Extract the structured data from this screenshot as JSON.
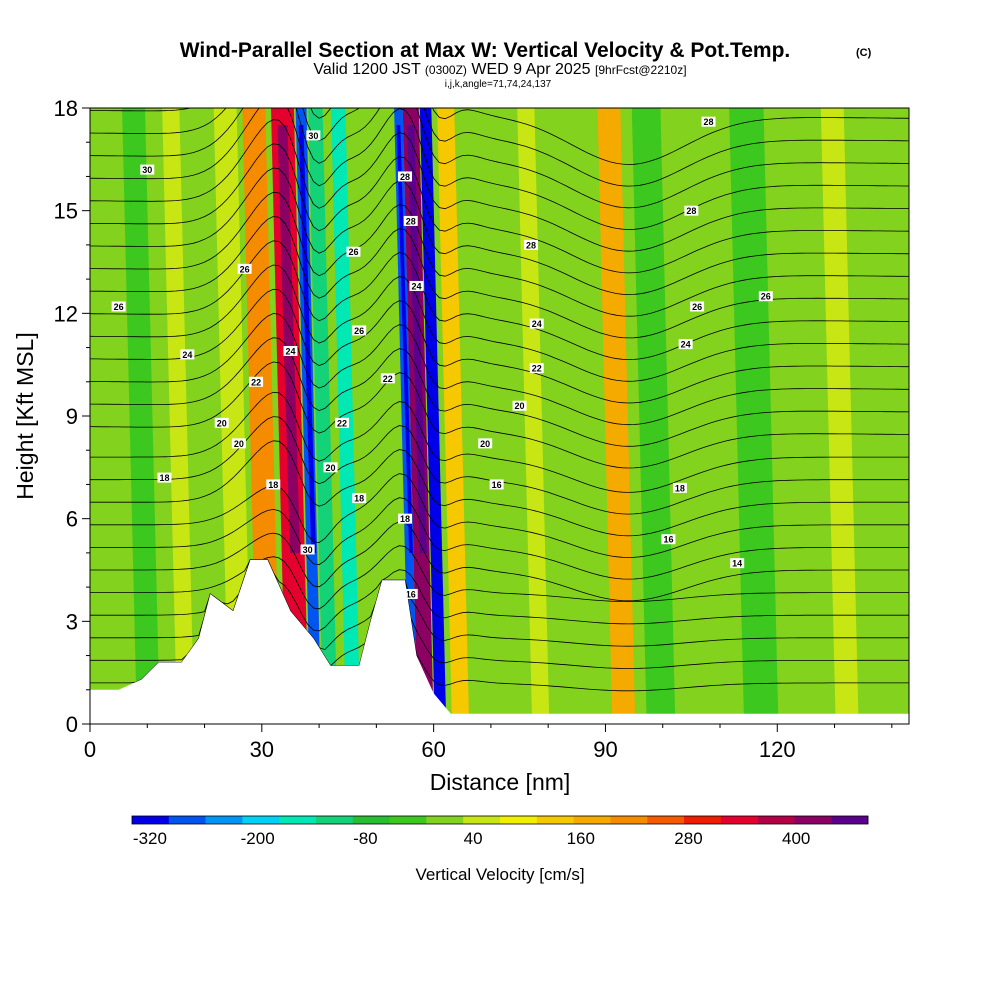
{
  "header": {
    "title": "Wind-Parallel Section at Max W: Vertical Velocity & Pot.Temp.",
    "copyright_mark": "(C)",
    "valid_prefix": "Valid 1200 JST",
    "valid_utc": "(0300Z)",
    "valid_date": "WED 9 Apr 2025",
    "forecast": "[9hrFcst@2210z]",
    "grid_info": "i,j,k,angle=71,74,24,137"
  },
  "chart_data": {
    "type": "heatmap",
    "title": "Wind-Parallel Section at Max W: Vertical Velocity & Pot.Temp.",
    "xlabel": "Distance [nm]",
    "ylabel": "Height [Kft MSL]",
    "xlim": [
      0,
      143
    ],
    "ylim": [
      0,
      18
    ],
    "x_ticks": [
      "0",
      "30",
      "60",
      "90",
      "120"
    ],
    "y_ticks": [
      "0",
      "3",
      "6",
      "9",
      "12",
      "15",
      "18"
    ],
    "x_tick_values": [
      0,
      30,
      60,
      90,
      120
    ],
    "y_tick_values": [
      0,
      3,
      6,
      9,
      12,
      15,
      18
    ],
    "colorbar": {
      "label": "Vertical Velocity [cm/s]",
      "min": -340,
      "max": 480,
      "step": 40,
      "labels": [
        "-320",
        "-200",
        "-80",
        "40",
        "160",
        "280",
        "400"
      ],
      "label_values": [
        -320,
        -200,
        -80,
        40,
        160,
        280,
        400
      ],
      "colors": [
        "#0000e8",
        "#0055f0",
        "#0095f5",
        "#00d2f5",
        "#00e8b4",
        "#14d278",
        "#28be32",
        "#3cc81e",
        "#82d21e",
        "#c8e614",
        "#f0f000",
        "#f5c800",
        "#f5aa00",
        "#f58c00",
        "#f55a00",
        "#f01e00",
        "#e6002d",
        "#b40046",
        "#8c0064",
        "#5a008c"
      ]
    },
    "terrain_kft": [
      [
        0,
        1.0
      ],
      [
        5,
        1.0
      ],
      [
        9,
        1.3
      ],
      [
        12,
        1.8
      ],
      [
        16,
        1.8
      ],
      [
        19,
        2.5
      ],
      [
        21,
        3.8
      ],
      [
        25,
        3.3
      ],
      [
        28,
        4.8
      ],
      [
        31,
        4.8
      ],
      [
        35,
        3.3
      ],
      [
        39,
        2.5
      ],
      [
        42,
        1.7
      ],
      [
        47,
        1.7
      ],
      [
        49,
        3.0
      ],
      [
        51,
        4.2
      ],
      [
        55,
        4.2
      ],
      [
        57,
        2.0
      ],
      [
        60,
        0.9
      ],
      [
        63,
        0.3
      ],
      [
        68,
        0.3
      ],
      [
        143,
        0.3
      ]
    ],
    "w_field_description": "strong updraft columns near 35 nm and 56 nm, adjacent downdrafts near 38 nm and 59 nm",
    "w_bands": [
      {
        "x": [
          32,
          36
        ],
        "w": 300
      },
      {
        "x": [
          36.3,
          38.2
        ],
        "w": -300
      },
      {
        "x": [
          38.5,
          41
        ],
        "w": -120
      },
      {
        "x": [
          42.5,
          45
        ],
        "w": -180
      },
      {
        "x": [
          53.5,
          55
        ],
        "w": -280
      },
      {
        "x": [
          55,
          57.8
        ],
        "w": 410
      },
      {
        "x": [
          58,
          60
        ],
        "w": -320
      },
      {
        "x": [
          61,
          64
        ],
        "w": 130
      },
      {
        "x": [
          89,
          93
        ],
        "w": 150
      },
      {
        "x": [
          27,
          31
        ],
        "w": 180
      },
      {
        "x": [
          22,
          26
        ],
        "w": 20
      },
      {
        "x": [
          6,
          10
        ],
        "w": -30
      },
      {
        "x": [
          13,
          16
        ],
        "w": 40
      },
      {
        "x": [
          75,
          78
        ],
        "w": 40
      },
      {
        "x": [
          95,
          100
        ],
        "w": -40
      },
      {
        "x": [
          112,
          118
        ],
        "w": -30
      },
      {
        "x": [
          128,
          132
        ],
        "w": 20
      }
    ],
    "theta_contour_labels": [
      "30",
      "30",
      "28",
      "28",
      "28",
      "28",
      "26",
      "26",
      "26",
      "26",
      "26",
      "24",
      "24",
      "24",
      "24",
      "24",
      "22",
      "22",
      "22",
      "22",
      "20",
      "20",
      "20",
      "20",
      "20",
      "18",
      "18",
      "18",
      "18",
      "18",
      "16",
      "16",
      "16",
      "14",
      "30",
      "28",
      "26"
    ]
  }
}
